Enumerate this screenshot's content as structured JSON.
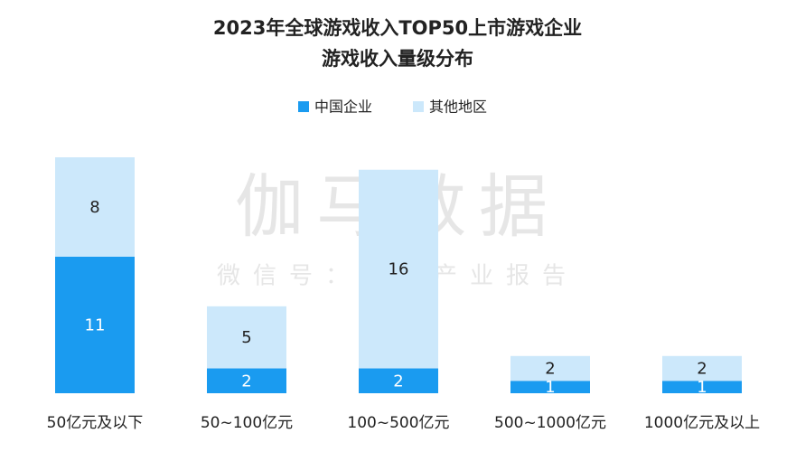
{
  "chart_data": {
    "type": "stacked-bar",
    "title": [
      "2023年全球游戏收入TOP50上市游戏企业",
      "游戏收入量级分布"
    ],
    "watermark": [
      "伽马数据",
      "微信号：游戏产业报告"
    ],
    "categories": [
      "50亿元及以下",
      "50~100亿元",
      "100~500亿元",
      "500~1000亿元",
      "1000亿元及以上"
    ],
    "series": [
      {
        "name": "中国企业",
        "color": "#1a9bf0",
        "values": [
          11,
          2,
          2,
          1,
          1
        ]
      },
      {
        "name": "其他地区",
        "color": "#cce8fb",
        "values": [
          8,
          5,
          16,
          2,
          2
        ]
      }
    ],
    "legend": "top"
  }
}
